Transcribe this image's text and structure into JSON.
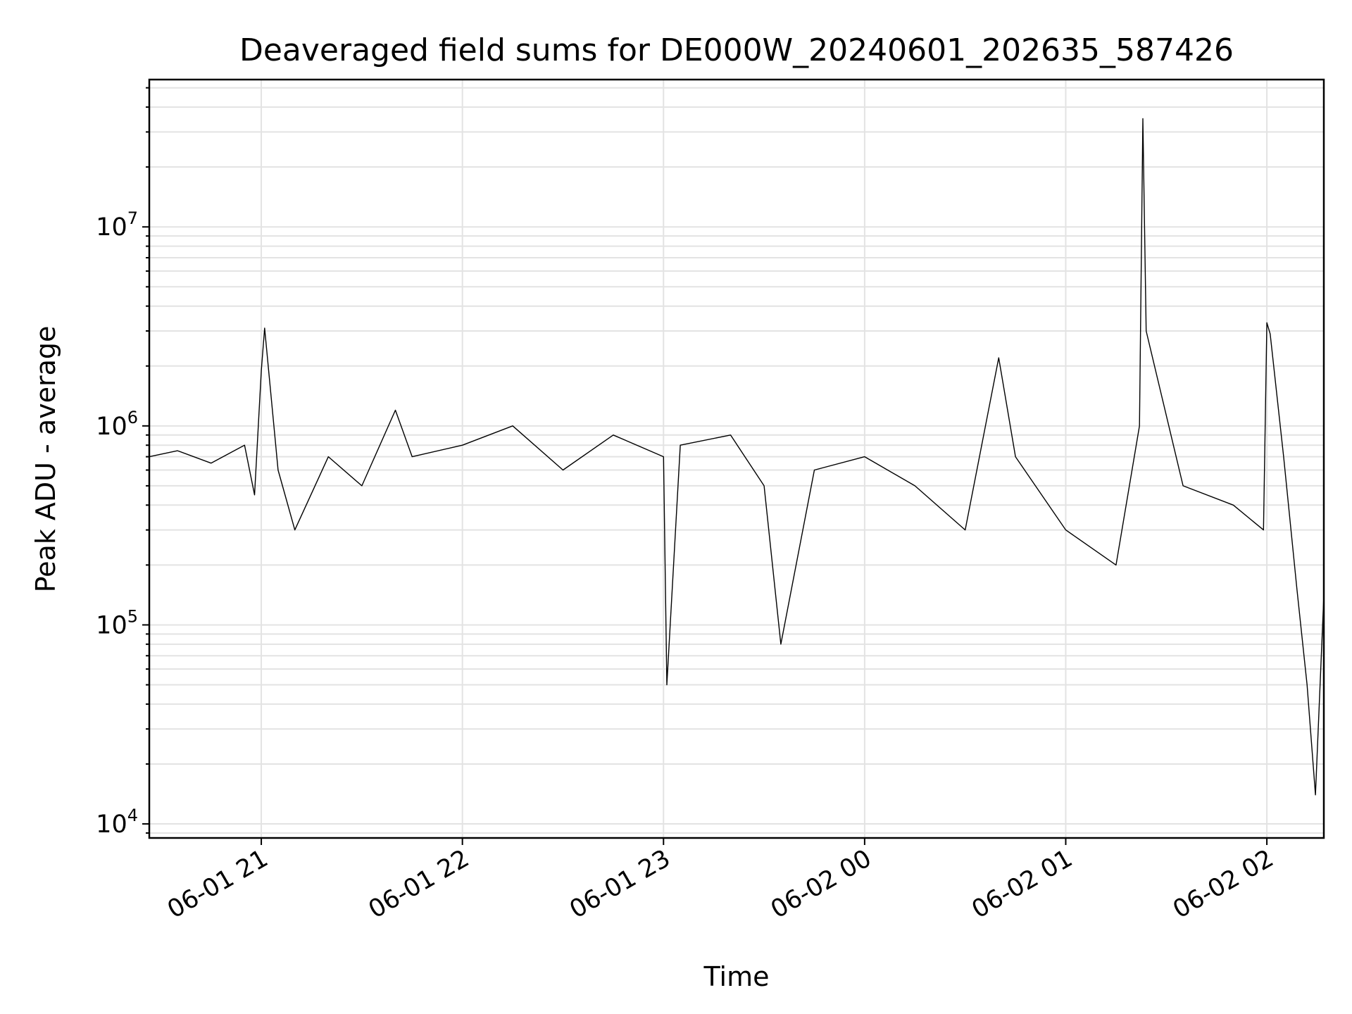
{
  "chart_data": {
    "type": "line",
    "title": "Deaveraged field sums for DE000W_20240601_202635_587426",
    "xlabel": "Time",
    "ylabel": "Peak ADU - average",
    "y_scale": "log",
    "grid": true,
    "xlim": [
      "2024-06-01 20:26:35",
      "2024-06-02 02:17:00"
    ],
    "ylim": [
      8500,
      55000000
    ],
    "x_ticks": [
      {
        "value": "2024-06-01 21:00",
        "label": "06-01 21"
      },
      {
        "value": "2024-06-01 22:00",
        "label": "06-01 22"
      },
      {
        "value": "2024-06-01 23:00",
        "label": "06-01 23"
      },
      {
        "value": "2024-06-02 00:00",
        "label": "06-02 00"
      },
      {
        "value": "2024-06-02 01:00",
        "label": "06-02 01"
      },
      {
        "value": "2024-06-02 02:00",
        "label": "06-02 02"
      }
    ],
    "y_ticks": [
      {
        "value": 10000,
        "base": "10",
        "exp": "4"
      },
      {
        "value": 100000,
        "base": "10",
        "exp": "5"
      },
      {
        "value": 1000000,
        "base": "10",
        "exp": "6"
      },
      {
        "value": 10000000,
        "base": "10",
        "exp": "7"
      }
    ],
    "series": [
      {
        "color": "#000000",
        "x": [
          "2024-06-01 20:26:35",
          "2024-06-01 20:35:00",
          "2024-06-01 20:45:00",
          "2024-06-01 20:55:00",
          "2024-06-01 20:58:00",
          "2024-06-01 21:00:00",
          "2024-06-01 21:01:00",
          "2024-06-01 21:05:00",
          "2024-06-01 21:10:00",
          "2024-06-01 21:20:00",
          "2024-06-01 21:30:00",
          "2024-06-01 21:40:00",
          "2024-06-01 21:45:00",
          "2024-06-01 22:00:00",
          "2024-06-01 22:15:00",
          "2024-06-01 22:30:00",
          "2024-06-01 22:45:00",
          "2024-06-01 23:00:00",
          "2024-06-01 23:01:00",
          "2024-06-01 23:05:00",
          "2024-06-01 23:20:00",
          "2024-06-01 23:30:00",
          "2024-06-01 23:35:00",
          "2024-06-01 23:45:00",
          "2024-06-02 00:00:00",
          "2024-06-02 00:15:00",
          "2024-06-02 00:30:00",
          "2024-06-02 00:40:00",
          "2024-06-02 00:45:00",
          "2024-06-02 01:00:00",
          "2024-06-02 01:15:00",
          "2024-06-02 01:22:00",
          "2024-06-02 01:23:00",
          "2024-06-02 01:24:00",
          "2024-06-02 01:35:00",
          "2024-06-02 01:50:00",
          "2024-06-02 01:59:00",
          "2024-06-02 02:00:00",
          "2024-06-02 02:01:00",
          "2024-06-02 02:05:00",
          "2024-06-02 02:09:00",
          "2024-06-02 02:12:00",
          "2024-06-02 02:14:30",
          "2024-06-02 02:17:00"
        ],
        "y": [
          700000,
          750000,
          650000,
          800000,
          450000,
          1900000,
          3100000,
          600000,
          300000,
          700000,
          500000,
          1200000,
          700000,
          800000,
          1000000,
          600000,
          900000,
          700000,
          50000,
          800000,
          900000,
          500000,
          80000,
          600000,
          700000,
          500000,
          300000,
          2200000,
          700000,
          300000,
          200000,
          1000000,
          35000000,
          3000000,
          500000,
          400000,
          300000,
          3300000,
          2900000,
          700000,
          150000,
          50000,
          14000,
          140000
        ]
      }
    ]
  }
}
